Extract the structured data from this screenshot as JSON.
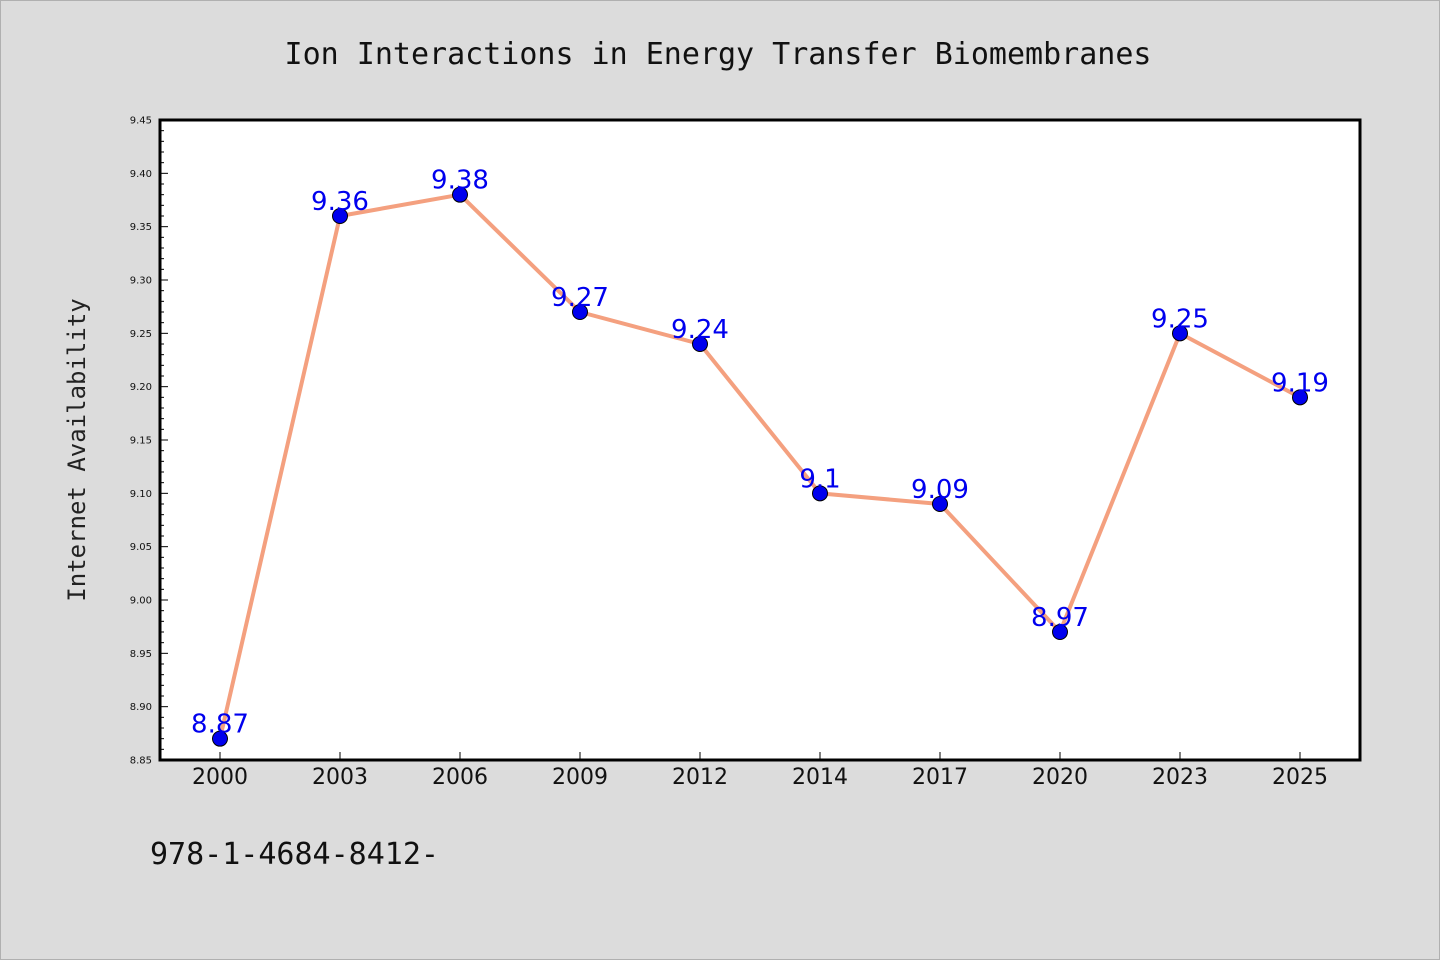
{
  "chart_data": {
    "type": "line",
    "title": "Ion Interactions in Energy Transfer Biomembranes",
    "ylabel": "Internet Availability",
    "xlabel": "",
    "categories": [
      "2000",
      "2003",
      "2006",
      "2009",
      "2012",
      "2014",
      "2017",
      "2020",
      "2023",
      "2025"
    ],
    "values": [
      8.87,
      9.36,
      9.38,
      9.27,
      9.24,
      9.1,
      9.09,
      8.97,
      9.25,
      9.19
    ],
    "data_labels": [
      "8.87",
      "9.36",
      "9.38",
      "9.27",
      "9.24",
      "9.1",
      "9.09",
      "8.97",
      "9.25",
      "9.19"
    ],
    "ylim": [
      8.85,
      9.45
    ],
    "yticks": [
      "8.85",
      "8.90",
      "8.95",
      "9.00",
      "9.05",
      "9.10",
      "9.15",
      "9.20",
      "9.25",
      "9.30",
      "9.35",
      "9.40",
      "9.45"
    ],
    "grid": false,
    "legend": "none",
    "colors": {
      "line": "#f4a07f",
      "marker": "#0000ee",
      "label": "#0000ee",
      "background": "#dcdcdc",
      "plot_background": "#ffffff"
    }
  },
  "footnote": "978-1-4684-8412-"
}
